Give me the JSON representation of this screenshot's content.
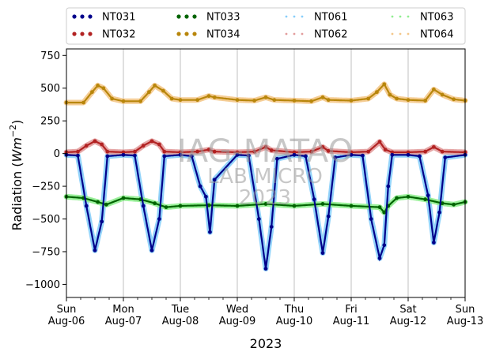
{
  "chart_data": {
    "type": "scatter",
    "xlabel": "2023",
    "ylabel": "Radiation (Wm⁻²)",
    "ylabel_main": "Radiation (",
    "ylabel_unit": "Wm",
    "ylabel_exp": "−2",
    "ylabel_close": ")",
    "xlim": [
      0,
      7
    ],
    "ylim": [
      -1100,
      800
    ],
    "grid": "x-only",
    "legend": "top-center, above plot, 4 columns",
    "x_ticks": [
      {
        "x": 0,
        "day": "Sun",
        "date": "Aug-06"
      },
      {
        "x": 1,
        "day": "Mon",
        "date": "Aug-07"
      },
      {
        "x": 2,
        "day": "Tue",
        "date": "Aug-08"
      },
      {
        "x": 3,
        "day": "Wed",
        "date": "Aug-09"
      },
      {
        "x": 4,
        "day": "Thu",
        "date": "Aug-10"
      },
      {
        "x": 5,
        "day": "Fri",
        "date": "Aug-11"
      },
      {
        "x": 6,
        "day": "Sat",
        "date": "Aug-12"
      },
      {
        "x": 7,
        "day": "Sun",
        "date": "Aug-13"
      }
    ],
    "y_ticks": [
      {
        "value": 750,
        "label": "750"
      },
      {
        "value": 500,
        "label": "500"
      },
      {
        "value": 250,
        "label": "250"
      },
      {
        "value": 0,
        "label": "0"
      },
      {
        "value": -250,
        "label": "−250"
      },
      {
        "value": -500,
        "label": "−500"
      },
      {
        "value": -750,
        "label": "−750"
      },
      {
        "value": -1000,
        "label": "−1000"
      }
    ],
    "watermark": [
      "IAG-MATAO",
      "LAB MICRO",
      "2023"
    ],
    "series": [
      {
        "name": "NT031",
        "color": "#00008b",
        "style": "dots",
        "values": [
          [
            0,
            -10
          ],
          [
            0.2,
            -15
          ],
          [
            0.35,
            -400
          ],
          [
            0.5,
            -740
          ],
          [
            0.62,
            -520
          ],
          [
            0.72,
            -20
          ],
          [
            1,
            -10
          ],
          [
            1.2,
            -15
          ],
          [
            1.35,
            -400
          ],
          [
            1.5,
            -740
          ],
          [
            1.63,
            -500
          ],
          [
            1.72,
            -20
          ],
          [
            2,
            -10
          ],
          [
            2.2,
            -20
          ],
          [
            2.35,
            -250
          ],
          [
            2.45,
            -330
          ],
          [
            2.52,
            -600
          ],
          [
            2.6,
            -200
          ],
          [
            3,
            -10
          ],
          [
            3.2,
            -15
          ],
          [
            3.38,
            -500
          ],
          [
            3.5,
            -880
          ],
          [
            3.6,
            -560
          ],
          [
            3.7,
            -40
          ],
          [
            4,
            -10
          ],
          [
            4.2,
            -20
          ],
          [
            4.35,
            -350
          ],
          [
            4.5,
            -760
          ],
          [
            4.6,
            -480
          ],
          [
            4.72,
            -30
          ],
          [
            5,
            -10
          ],
          [
            5.2,
            -15
          ],
          [
            5.35,
            -500
          ],
          [
            5.5,
            -800
          ],
          [
            5.58,
            -700
          ],
          [
            5.65,
            -250
          ],
          [
            5.72,
            -10
          ],
          [
            6,
            -10
          ],
          [
            6.2,
            -20
          ],
          [
            6.35,
            -320
          ],
          [
            6.45,
            -680
          ],
          [
            6.55,
            -450
          ],
          [
            6.65,
            -30
          ],
          [
            7,
            -10
          ]
        ]
      },
      {
        "name": "NT032",
        "color": "#b22222",
        "style": "dots",
        "values": [
          [
            0,
            10
          ],
          [
            0.2,
            15
          ],
          [
            0.35,
            60
          ],
          [
            0.5,
            95
          ],
          [
            0.62,
            70
          ],
          [
            0.72,
            15
          ],
          [
            1,
            10
          ],
          [
            1.2,
            15
          ],
          [
            1.35,
            60
          ],
          [
            1.5,
            95
          ],
          [
            1.63,
            70
          ],
          [
            1.72,
            15
          ],
          [
            2,
            10
          ],
          [
            2.3,
            15
          ],
          [
            2.5,
            30
          ],
          [
            2.6,
            15
          ],
          [
            3,
            10
          ],
          [
            3.3,
            15
          ],
          [
            3.5,
            50
          ],
          [
            3.6,
            25
          ],
          [
            4,
            10
          ],
          [
            4.3,
            15
          ],
          [
            4.5,
            50
          ],
          [
            4.6,
            20
          ],
          [
            5,
            10
          ],
          [
            5.3,
            15
          ],
          [
            5.5,
            90
          ],
          [
            5.6,
            30
          ],
          [
            5.72,
            10
          ],
          [
            6,
            10
          ],
          [
            6.3,
            15
          ],
          [
            6.45,
            50
          ],
          [
            6.6,
            15
          ],
          [
            7,
            10
          ]
        ]
      },
      {
        "name": "NT033",
        "color": "#006400",
        "style": "dots",
        "values": [
          [
            0,
            -330
          ],
          [
            0.3,
            -340
          ],
          [
            0.55,
            -370
          ],
          [
            0.7,
            -390
          ],
          [
            1,
            -340
          ],
          [
            1.3,
            -350
          ],
          [
            1.55,
            -380
          ],
          [
            1.75,
            -410
          ],
          [
            2,
            -400
          ],
          [
            2.5,
            -395
          ],
          [
            3,
            -400
          ],
          [
            3.5,
            -385
          ],
          [
            4,
            -400
          ],
          [
            4.5,
            -385
          ],
          [
            5,
            -400
          ],
          [
            5.5,
            -410
          ],
          [
            5.58,
            -450
          ],
          [
            5.65,
            -400
          ],
          [
            5.8,
            -340
          ],
          [
            6,
            -330
          ],
          [
            6.3,
            -350
          ],
          [
            6.6,
            -380
          ],
          [
            6.8,
            -390
          ],
          [
            7,
            -370
          ]
        ]
      },
      {
        "name": "NT034",
        "color": "#b8860b",
        "style": "dots",
        "values": [
          [
            0,
            390
          ],
          [
            0.3,
            390
          ],
          [
            0.45,
            470
          ],
          [
            0.55,
            520
          ],
          [
            0.65,
            500
          ],
          [
            0.8,
            420
          ],
          [
            1,
            400
          ],
          [
            1.3,
            400
          ],
          [
            1.45,
            470
          ],
          [
            1.55,
            520
          ],
          [
            1.7,
            480
          ],
          [
            1.85,
            420
          ],
          [
            2,
            410
          ],
          [
            2.3,
            410
          ],
          [
            2.5,
            440
          ],
          [
            2.6,
            430
          ],
          [
            3,
            410
          ],
          [
            3.3,
            405
          ],
          [
            3.5,
            430
          ],
          [
            3.65,
            410
          ],
          [
            4,
            405
          ],
          [
            4.3,
            400
          ],
          [
            4.5,
            430
          ],
          [
            4.6,
            410
          ],
          [
            5,
            405
          ],
          [
            5.3,
            420
          ],
          [
            5.45,
            470
          ],
          [
            5.58,
            530
          ],
          [
            5.68,
            450
          ],
          [
            5.8,
            420
          ],
          [
            6,
            410
          ],
          [
            6.3,
            405
          ],
          [
            6.45,
            490
          ],
          [
            6.6,
            450
          ],
          [
            6.8,
            415
          ],
          [
            7,
            405
          ]
        ]
      },
      {
        "name": "NT061",
        "color": "#87cefa",
        "style": "dotted"
      },
      {
        "name": "NT062",
        "color": "#e29c9c",
        "style": "dotted"
      },
      {
        "name": "NT063",
        "color": "#90ee90",
        "style": "dotted"
      },
      {
        "name": "NT064",
        "color": "#f4c88a",
        "style": "dotted"
      }
    ]
  }
}
